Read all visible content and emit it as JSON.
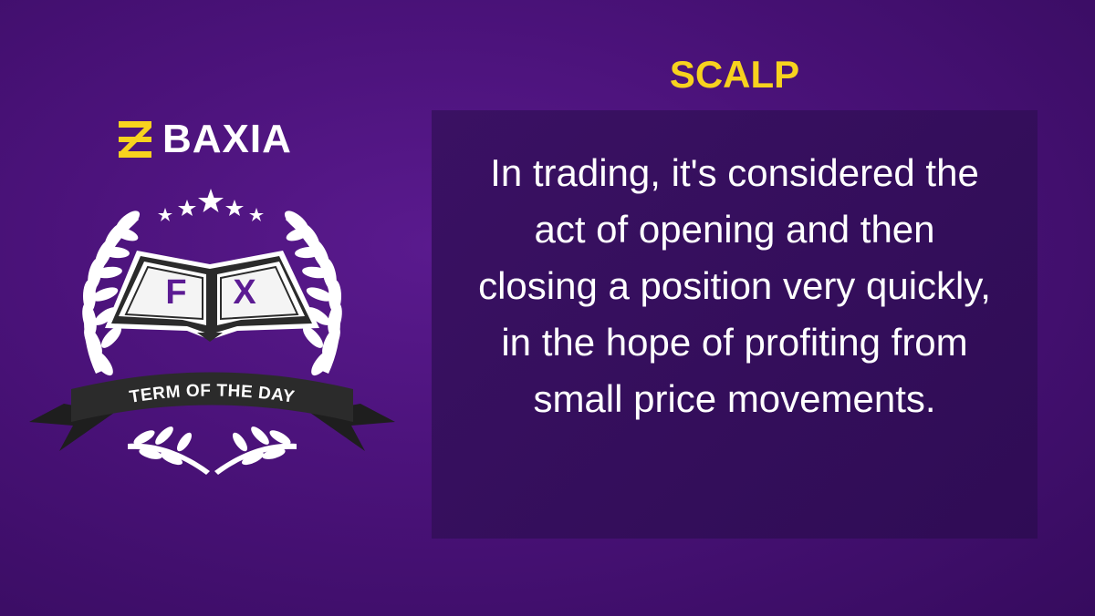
{
  "brand": {
    "name": "BAXIA"
  },
  "emblem": {
    "book_left_letter": "F",
    "book_right_letter": "X",
    "ribbon_text": "TERM OF THE DAY"
  },
  "term": {
    "title": "SCALP",
    "definition": "In trading, it's considered the act of opening and then closing a position very quickly, in the hope of profiting from small price movements."
  },
  "colors": {
    "accent_yellow": "#f7d21e",
    "background_purple": "#4a1279",
    "box_purple": "#36105e",
    "ribbon_dark": "#2b2b2b",
    "white": "#ffffff"
  }
}
